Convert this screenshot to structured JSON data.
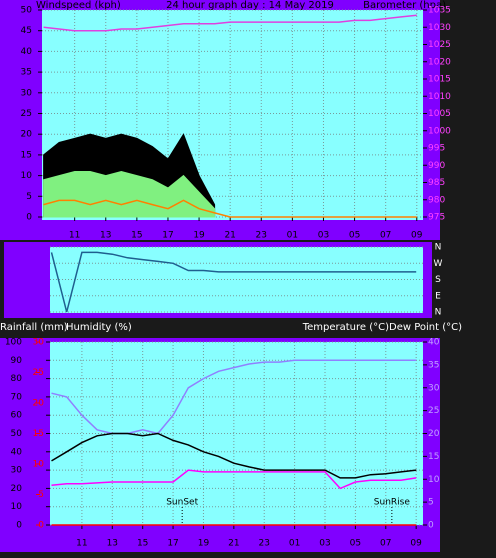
{
  "chart_data": [
    {
      "type": "line",
      "title": "24 hour graph day : 14 May 2019",
      "ylabel": "Windspeed (kph)",
      "y2label": "Barometer (hpa)",
      "x": [
        9,
        10,
        11,
        12,
        13,
        14,
        15,
        16,
        17,
        18,
        19,
        20,
        21,
        22,
        23,
        24,
        25,
        26,
        27,
        28,
        29,
        30,
        31,
        32,
        33
      ],
      "xlim": [
        8.9,
        33.4
      ],
      "xticks": [
        11,
        13,
        15,
        17,
        19,
        21,
        23,
        {
          "value": 25,
          "label": "01"
        },
        {
          "value": 27,
          "label": "03"
        },
        {
          "value": 29,
          "label": "05"
        },
        {
          "value": 31,
          "label": "07"
        },
        {
          "value": 33,
          "label": "09"
        }
      ],
      "ylim": [
        0,
        50
      ],
      "yticks": [
        0,
        5,
        10,
        15,
        20,
        25,
        30,
        35,
        40,
        45,
        50
      ],
      "y2lim": [
        975,
        1035
      ],
      "y2ticks": [
        975,
        980,
        985,
        990,
        995,
        1000,
        1005,
        1010,
        1015,
        1020,
        1025,
        1030,
        1035
      ],
      "grid": true,
      "series": [
        {
          "color": "#000000",
          "area": true,
          "values": [
            15,
            18,
            19,
            20,
            19,
            20,
            19,
            17,
            14,
            20,
            10,
            3,
            null,
            null,
            null,
            null,
            null,
            null,
            null,
            null,
            null,
            null,
            null,
            null,
            null
          ]
        },
        {
          "color": "#80f080",
          "area": true,
          "values": [
            9,
            10,
            11,
            11,
            10,
            11,
            10,
            9,
            7,
            10,
            6,
            2,
            null,
            null,
            null,
            null,
            null,
            null,
            null,
            null,
            null,
            null,
            null,
            null,
            null
          ]
        },
        {
          "color": "#ff8000",
          "values": [
            3,
            4,
            4,
            3,
            4,
            3,
            4,
            3,
            2,
            4,
            2,
            1,
            0,
            0,
            0,
            0,
            0,
            0,
            0,
            0,
            0,
            0,
            0,
            0,
            0
          ]
        },
        {
          "color": "#e040e0",
          "axis": "y2",
          "values": [
            1030,
            1029.5,
            1029,
            1029,
            1029,
            1029.5,
            1029.5,
            1030,
            1030.5,
            1031,
            1031,
            1031,
            1031.5,
            1031.5,
            1031.5,
            1031.5,
            1031.5,
            1031.5,
            1031.5,
            1031.5,
            1032,
            1032,
            1032.5,
            1033,
            1033.5
          ]
        }
      ]
    },
    {
      "type": "line",
      "x": [
        9,
        10,
        11,
        12,
        13,
        14,
        15,
        16,
        17,
        18,
        19,
        20,
        21,
        22,
        23,
        24,
        25,
        26,
        27,
        28,
        29,
        30,
        31,
        32,
        33
      ],
      "xlim": [
        8.9,
        33.45
      ],
      "ylim": [
        0,
        360
      ],
      "yticks": [
        {
          "value": 360,
          "label": "N"
        },
        {
          "value": 270,
          "label": "W"
        },
        {
          "value": 180,
          "label": "S"
        },
        {
          "value": 90,
          "label": "E"
        },
        {
          "value": 0,
          "label": "N"
        }
      ],
      "ytick_side": "right",
      "grid": true,
      "series": [
        {
          "color": "#1f5f8f",
          "values": [
            330,
            0,
            330,
            330,
            320,
            300,
            290,
            280,
            270,
            230,
            230,
            222,
            222,
            222,
            222,
            222,
            222,
            222,
            222,
            222,
            222,
            222,
            222,
            222,
            222
          ]
        }
      ]
    },
    {
      "type": "line",
      "ylabel": "Humidity (%)",
      "y3label": "Rainfall (mm)",
      "y2label": "Temperature (°C)Dew Point (°C)",
      "x": [
        9,
        10,
        11,
        12,
        13,
        14,
        15,
        16,
        17,
        18,
        19,
        20,
        21,
        22,
        23,
        24,
        25,
        26,
        27,
        28,
        29,
        30,
        31,
        32,
        33
      ],
      "xlim": [
        8.9,
        33.45
      ],
      "xticks": [
        11,
        13,
        15,
        17,
        19,
        21,
        23,
        {
          "value": 25,
          "label": "01"
        },
        {
          "value": 27,
          "label": "03"
        },
        {
          "value": 29,
          "label": "05"
        },
        {
          "value": 31,
          "label": "07"
        },
        {
          "value": 33,
          "label": "09"
        }
      ],
      "ylim": [
        0,
        100
      ],
      "yticks": [
        0,
        10,
        20,
        30,
        40,
        50,
        60,
        70,
        80,
        90,
        100
      ],
      "y2lim": [
        0,
        40
      ],
      "y2ticks": [
        0,
        5,
        10,
        15,
        20,
        25,
        30,
        35,
        40
      ],
      "y3lim": [
        0,
        30
      ],
      "y3ticks": [
        0,
        5,
        10,
        15,
        20,
        25,
        30
      ],
      "grid": true,
      "annotations": [
        {
          "text": "SunSet",
          "x": 17.6
        },
        {
          "text": "SunRise",
          "x": 31.4
        }
      ],
      "series": [
        {
          "color": "#9080ff",
          "values": [
            72,
            70,
            60,
            52,
            50,
            50,
            52,
            50,
            60,
            75,
            80,
            84,
            86,
            88,
            89,
            89,
            90,
            90,
            90,
            90,
            90,
            90,
            90,
            90,
            90
          ]
        },
        {
          "color": "#000000",
          "axis": "y2",
          "values": [
            14,
            16,
            18,
            19.5,
            20,
            20,
            19.5,
            20,
            18.5,
            17.5,
            16,
            15,
            13.5,
            12.7,
            12,
            12,
            12,
            12,
            12,
            10.3,
            10.3,
            11,
            11.2,
            11.6,
            12
          ]
        },
        {
          "color": "#ff00ff",
          "axis": "y2",
          "values": [
            8.7,
            9,
            9,
            9.2,
            9.4,
            9.4,
            9.4,
            9.4,
            9.4,
            12,
            11.6,
            11.6,
            11.6,
            11.6,
            11.6,
            11.6,
            11.6,
            11.6,
            11.6,
            8,
            9.4,
            9.8,
            9.8,
            9.8,
            10.3
          ]
        },
        {
          "color": "#ff0000",
          "axis": "y3",
          "values": [
            0,
            0,
            0,
            0,
            0,
            0,
            0,
            0,
            0,
            0,
            0,
            0,
            0,
            0,
            0,
            0,
            0,
            0,
            0,
            0,
            0,
            0,
            0,
            0,
            0
          ]
        }
      ]
    }
  ]
}
